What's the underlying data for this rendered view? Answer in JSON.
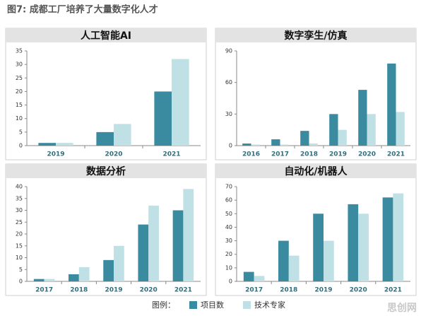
{
  "title": "图7: 成都工厂培养了大量数字化人才",
  "legend_label": "图例：",
  "watermark": "思创网",
  "chart_data": [
    {
      "type": "bar",
      "title": "人工智能AI",
      "categories": [
        "2019",
        "2020",
        "2021"
      ],
      "series": [
        {
          "name": "项目数",
          "color": "#3a8ba0",
          "values": [
            1,
            5,
            20
          ]
        },
        {
          "name": "技术专家",
          "color": "#bfe0e5",
          "values": [
            1,
            8,
            32
          ]
        }
      ],
      "ylim": [
        0,
        35
      ],
      "yticks": [
        0,
        5,
        10,
        15,
        20,
        25,
        30,
        35
      ]
    },
    {
      "type": "bar",
      "title": "数字孪生/仿真",
      "categories": [
        "2016",
        "2017",
        "2018",
        "2019",
        "2020",
        "2021"
      ],
      "series": [
        {
          "color": "#3a8ba0",
          "values": [
            2,
            6,
            14,
            30,
            53,
            78
          ]
        },
        {
          "color": "#bfe0e5",
          "values": [
            1,
            1,
            2,
            15,
            30,
            32
          ]
        }
      ],
      "ylim": [
        0,
        90
      ],
      "yticks": [
        0,
        30,
        60,
        90
      ]
    },
    {
      "type": "bar",
      "title": "数据分析",
      "categories": [
        "2017",
        "2018",
        "2019",
        "2020",
        "2021"
      ],
      "series": [
        {
          "color": "#3a8ba0",
          "values": [
            1,
            3,
            9,
            24,
            30
          ]
        },
        {
          "color": "#bfe0e5",
          "values": [
            1,
            6,
            15,
            32,
            39
          ]
        }
      ],
      "ylim": [
        0,
        40
      ],
      "yticks": [
        0,
        5,
        10,
        15,
        20,
        25,
        30,
        35,
        40
      ]
    },
    {
      "type": "bar",
      "title": "自动化/机器人",
      "categories": [
        "2017",
        "2018",
        "2019",
        "2020",
        "2021"
      ],
      "series": [
        {
          "color": "#3a8ba0",
          "values": [
            7,
            30,
            50,
            57,
            62
          ]
        },
        {
          "color": "#bfe0e5",
          "values": [
            4,
            19,
            30,
            50,
            65
          ]
        }
      ],
      "ylim": [
        0,
        70
      ],
      "yticks": [
        0,
        10,
        20,
        30,
        40,
        50,
        60,
        70
      ]
    }
  ]
}
